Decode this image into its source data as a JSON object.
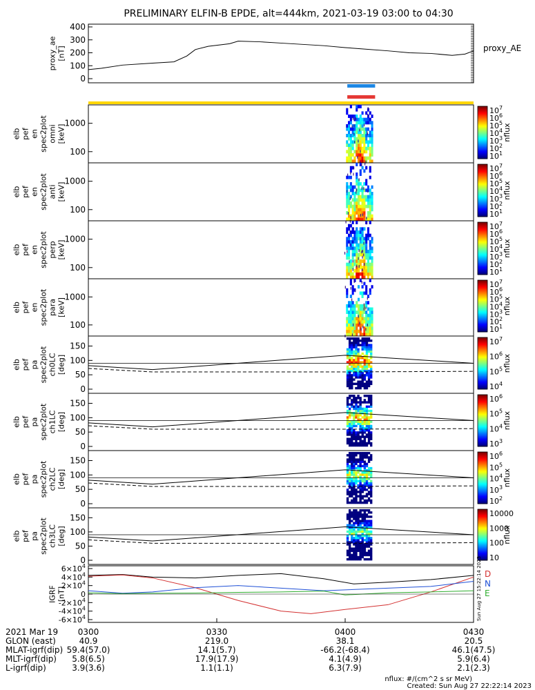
{
  "title": "PRELIMINARY ELFIN-B EPDE, alt=444km, 2021-03-19 03:00 to 04:30",
  "colors": {
    "ae_line": "#000000",
    "bar_blue": "#1e88e5",
    "bar_red": "#e53935",
    "bar_yellow": "#ffd600",
    "geo_D": "#d32f2f",
    "geo_N": "#1e4fd6",
    "geo_E": "#2fae2f"
  },
  "chart_data": [
    {
      "type": "line",
      "name": "proxy_ae",
      "ylabel": "proxy_ae\n[nT]",
      "right_label": "proxy_AE",
      "xlim": [
        0,
        90
      ],
      "ylim": [
        0,
        400
      ],
      "yticks": [
        "0",
        "100",
        "200",
        "300",
        "400"
      ],
      "x": [
        0,
        3,
        8,
        15,
        20,
        23,
        25,
        28,
        33,
        35,
        40,
        45,
        50,
        55,
        60,
        64,
        70,
        75,
        80,
        85,
        88,
        90
      ],
      "values": [
        70,
        80,
        105,
        120,
        130,
        175,
        225,
        250,
        270,
        290,
        285,
        275,
        265,
        255,
        240,
        230,
        215,
        200,
        195,
        180,
        190,
        215
      ]
    },
    {
      "type": "heatmap",
      "name": "spec2plot_omni",
      "ylabel": "elb\npef\nen\nspec2plot\nomni\n[keV]",
      "yscale": "log",
      "yticks": [
        "100",
        "1000"
      ],
      "cbar_label": "nflux",
      "cbar_ticks": [
        "10^7",
        "10^6",
        "10^5",
        "10^4",
        "10^3",
        "10^2",
        "10^1"
      ]
    },
    {
      "type": "heatmap",
      "name": "spec2plot_anti",
      "ylabel": "elb\npef\nen\nspec2plot\nanti\n[keV]",
      "yscale": "log",
      "yticks": [
        "100",
        "1000"
      ],
      "cbar_label": "nflux",
      "cbar_ticks": [
        "10^7",
        "10^6",
        "10^5",
        "10^4",
        "10^3",
        "10^2",
        "10^1"
      ]
    },
    {
      "type": "heatmap",
      "name": "spec2plot_perp",
      "ylabel": "elb\npef\nen\nspec2plot\nperp\n[keV]",
      "yscale": "log",
      "yticks": [
        "100",
        "1000"
      ],
      "cbar_label": "nflux",
      "cbar_ticks": [
        "10^7",
        "10^6",
        "10^5",
        "10^4",
        "10^3",
        "10^2",
        "10^1"
      ]
    },
    {
      "type": "heatmap",
      "name": "spec2plot_para",
      "ylabel": "elb\npef\nen\nspec2plot\npara\n[keV]",
      "yscale": "log",
      "yticks": [
        "100",
        "1000"
      ],
      "cbar_label": "nflux",
      "cbar_ticks": [
        "10^7",
        "10^6",
        "10^5",
        "10^4",
        "10^3",
        "10^2",
        "10^1"
      ]
    },
    {
      "type": "heatmap",
      "name": "spec2plot_ch0LC",
      "ylabel": "elb\npef\npa\nspec2plot\nch0LC\n[deg]",
      "ylim": [
        0,
        180
      ],
      "yticks": [
        "0",
        "50",
        "100",
        "150"
      ],
      "cbar_label": "nflux",
      "cbar_ticks": [
        "10^7",
        "10^6",
        "10^5",
        "10^4"
      ]
    },
    {
      "type": "heatmap",
      "name": "spec2plot_ch1LC",
      "ylabel": "elb\npef\npa\nspec2plot\nch1LC\n[deg]",
      "ylim": [
        0,
        180
      ],
      "yticks": [
        "0",
        "50",
        "100",
        "150"
      ],
      "cbar_label": "nflux",
      "cbar_ticks": [
        "10^6",
        "10^5",
        "10^4",
        "10^3"
      ]
    },
    {
      "type": "heatmap",
      "name": "spec2plot_ch2LC",
      "ylabel": "elb\npef\npa\nspec2plot\nch2LC\n[deg]",
      "ylim": [
        0,
        180
      ],
      "yticks": [
        "0",
        "50",
        "100",
        "150"
      ],
      "cbar_label": "nflux",
      "cbar_ticks": [
        "10^6",
        "10^5",
        "10^4",
        "10^3",
        "10^2"
      ]
    },
    {
      "type": "heatmap",
      "name": "spec2plot_ch3LC",
      "ylabel": "elb\npef\npa\nspec2plot\nch3LC\n[deg]",
      "ylim": [
        0,
        180
      ],
      "yticks": [
        "0",
        "50",
        "100",
        "150"
      ],
      "cbar_label": "nflux",
      "cbar_ticks": [
        "10000",
        "1000",
        "100",
        "10"
      ]
    },
    {
      "type": "line",
      "name": "IGRF",
      "ylabel": "IGRF\n[nT]",
      "ylim": [
        -60000,
        60000
      ],
      "yticks": [
        "-6×10^4",
        "-4×10^4",
        "-2×10^4",
        "0",
        "2×10^4",
        "4×10^4",
        "6×10^4"
      ],
      "legend": [
        "D",
        "N",
        "E"
      ],
      "side_text": "Sun Aug 27 15:22:14 2023"
    }
  ],
  "ephemeris": {
    "header": "2021 Mar 19",
    "tick_labels": [
      "0300",
      "0330",
      "0400",
      "0430"
    ],
    "rows": [
      {
        "label": "GLON (east)",
        "values": [
          "40.9",
          "219.0",
          "38.1",
          "20.5"
        ]
      },
      {
        "label": "MLAT-igrf(dip)",
        "values": [
          "59.4(57.0)",
          "14.1(5.7)",
          "-66.2(-68.4)",
          "46.1(47.5)"
        ]
      },
      {
        "label": "MLT-igrf(dip)",
        "values": [
          "5.8(6.5)",
          "17.9(17.9)",
          "4.1(4.9)",
          "5.9(6.4)"
        ]
      },
      {
        "label": "L-igrf(dip)",
        "values": [
          "3.9(3.6)",
          "1.1(1.1)",
          "6.3(7.9)",
          "2.1(2.3)"
        ]
      }
    ]
  },
  "footer": {
    "units": "nflux: #/(cm^2 s sr MeV)",
    "created": "Created: Sun Aug 27 22:22:14 2023"
  }
}
